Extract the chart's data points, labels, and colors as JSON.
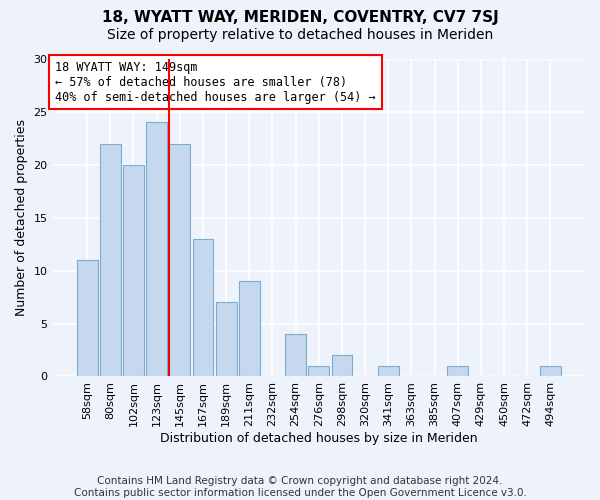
{
  "title": "18, WYATT WAY, MERIDEN, COVENTRY, CV7 7SJ",
  "subtitle": "Size of property relative to detached houses in Meriden",
  "xlabel": "Distribution of detached houses by size in Meriden",
  "ylabel": "Number of detached properties",
  "categories": [
    "58sqm",
    "80sqm",
    "102sqm",
    "123sqm",
    "145sqm",
    "167sqm",
    "189sqm",
    "211sqm",
    "232sqm",
    "254sqm",
    "276sqm",
    "298sqm",
    "320sqm",
    "341sqm",
    "363sqm",
    "385sqm",
    "407sqm",
    "429sqm",
    "450sqm",
    "472sqm",
    "494sqm"
  ],
  "values": [
    11,
    22,
    20,
    24,
    22,
    13,
    7,
    9,
    0,
    4,
    1,
    2,
    0,
    1,
    0,
    0,
    1,
    0,
    0,
    0,
    1
  ],
  "bar_color": "#c5d8ee",
  "bar_edgecolor": "#7aaed0",
  "red_line_index": 4,
  "annotation_line1": "18 WYATT WAY: 149sqm",
  "annotation_line2": "← 57% of detached houses are smaller (78)",
  "annotation_line3": "40% of semi-detached houses are larger (54) →",
  "annotation_box_color": "white",
  "annotation_box_edgecolor": "red",
  "ylim": [
    0,
    30
  ],
  "yticks": [
    0,
    5,
    10,
    15,
    20,
    25,
    30
  ],
  "background_color": "#eef2fa",
  "grid_color": "white",
  "footer": "Contains HM Land Registry data © Crown copyright and database right 2024.\nContains public sector information licensed under the Open Government Licence v3.0.",
  "title_fontsize": 11,
  "subtitle_fontsize": 10,
  "xlabel_fontsize": 9,
  "ylabel_fontsize": 9,
  "tick_fontsize": 8,
  "annotation_fontsize": 8.5,
  "footer_fontsize": 7.5
}
